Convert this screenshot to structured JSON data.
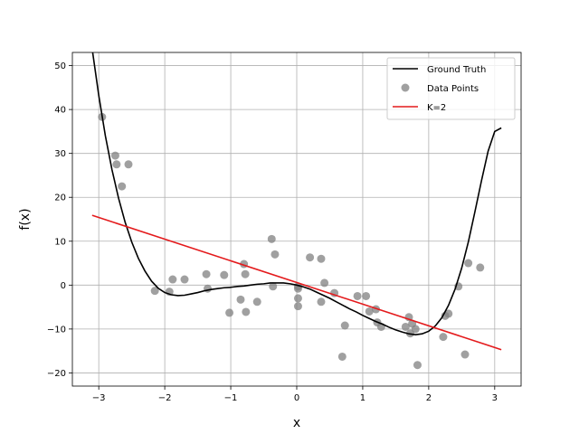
{
  "chart_data": {
    "type": "scatter",
    "title": "",
    "xlabel": "x",
    "ylabel": "f(x)",
    "xlim": [
      -3.4,
      3.4
    ],
    "ylim": [
      -23,
      53
    ],
    "xticks": [
      -3,
      -2,
      -1,
      0,
      1,
      2,
      3
    ],
    "yticks": [
      -20,
      -10,
      0,
      10,
      20,
      30,
      40,
      50
    ],
    "grid": true,
    "legend_position": "top-right",
    "series": [
      {
        "name": "Ground Truth",
        "kind": "line",
        "color": "#000000",
        "x": [
          -3.1,
          -3.0,
          -2.9,
          -2.8,
          -2.7,
          -2.6,
          -2.5,
          -2.4,
          -2.3,
          -2.2,
          -2.1,
          -2.0,
          -1.9,
          -1.8,
          -1.7,
          -1.6,
          -1.5,
          -1.4,
          -1.3,
          -1.2,
          -1.1,
          -1.0,
          -0.9,
          -0.8,
          -0.7,
          -0.6,
          -0.5,
          -0.4,
          -0.3,
          -0.2,
          -0.1,
          0.0,
          0.1,
          0.2,
          0.3,
          0.4,
          0.5,
          0.6,
          0.7,
          0.8,
          0.9,
          1.0,
          1.1,
          1.2,
          1.3,
          1.4,
          1.5,
          1.6,
          1.7,
          1.8,
          1.9,
          2.0,
          2.1,
          2.2,
          2.3,
          2.4,
          2.5,
          2.6,
          2.7,
          2.8,
          2.9,
          3.0,
          3.1
        ],
        "y": [
          53.8,
          43.2,
          34.0,
          26.3,
          19.8,
          14.3,
          9.8,
          6.1,
          3.2,
          0.9,
          -0.7,
          -1.7,
          -2.2,
          -2.4,
          -2.3,
          -2.0,
          -1.7,
          -1.3,
          -1.0,
          -0.8,
          -0.6,
          -0.5,
          -0.3,
          -0.2,
          0.0,
          0.2,
          0.3,
          0.5,
          0.5,
          0.5,
          0.3,
          0.0,
          -0.4,
          -0.9,
          -1.6,
          -2.3,
          -3.0,
          -3.8,
          -4.6,
          -5.4,
          -6.1,
          -6.9,
          -7.6,
          -8.3,
          -8.9,
          -9.6,
          -10.2,
          -10.7,
          -11.1,
          -11.3,
          -11.1,
          -10.5,
          -9.3,
          -7.4,
          -4.6,
          -0.9,
          3.9,
          9.8,
          16.7,
          23.8,
          30.5,
          35.0,
          35.8
        ]
      },
      {
        "name": "Data Points",
        "kind": "scatter",
        "color": "#808080",
        "x": [
          -2.95,
          -2.75,
          -2.73,
          -2.65,
          -2.55,
          -2.15,
          -1.93,
          -1.88,
          -1.7,
          -1.37,
          -1.35,
          -1.1,
          -1.02,
          -0.85,
          -0.8,
          -0.78,
          -0.77,
          -0.6,
          -0.38,
          -0.36,
          -0.33,
          0.02,
          0.02,
          0.02,
          0.02,
          0.2,
          0.37,
          0.37,
          0.42,
          0.57,
          0.69,
          0.73,
          0.92,
          1.05,
          1.1,
          1.2,
          1.22,
          1.28,
          1.65,
          1.7,
          1.72,
          1.75,
          1.8,
          1.83,
          2.22,
          2.25,
          2.3,
          2.45,
          2.55,
          2.6,
          2.78
        ],
        "y": [
          38.3,
          29.5,
          27.5,
          22.5,
          27.5,
          -1.3,
          -1.5,
          1.3,
          1.3,
          2.5,
          -0.8,
          2.3,
          -6.3,
          -3.3,
          4.8,
          2.5,
          -6.1,
          -3.8,
          10.5,
          -0.3,
          7.0,
          -0.8,
          -3.0,
          -4.8,
          -0.3,
          6.3,
          6.0,
          -3.8,
          0.5,
          -1.8,
          -16.3,
          -9.2,
          -2.5,
          -2.5,
          -6.0,
          -5.5,
          -8.5,
          -9.5,
          -9.5,
          -7.3,
          -11.0,
          -8.8,
          -10.0,
          -18.2,
          -11.8,
          -7.0,
          -6.5,
          -0.3,
          -15.8,
          5.0,
          4.0
        ]
      },
      {
        "name": "K=2",
        "kind": "line",
        "color": "#e41a1c",
        "x": [
          -3.1,
          3.1
        ],
        "y": [
          15.9,
          -14.7
        ]
      }
    ]
  }
}
